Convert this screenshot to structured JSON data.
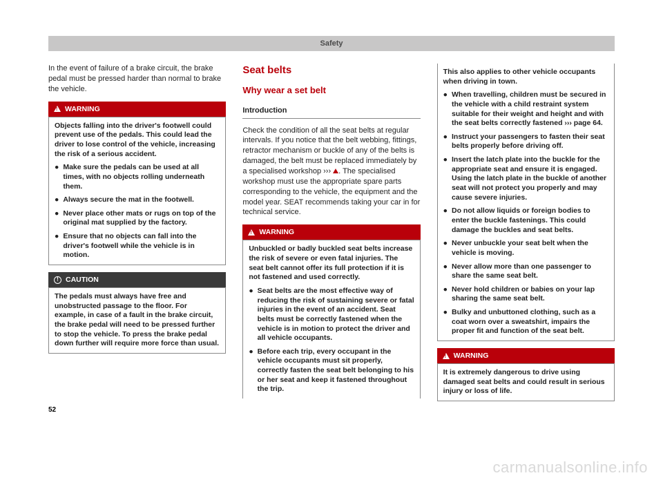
{
  "header": "Safety",
  "page_number": "52",
  "watermark": "carmanualsonline.info",
  "col1": {
    "intro": "In the event of failure of a brake circuit, the brake pedal must be pressed harder than normal to brake the vehicle.",
    "warning": {
      "title": "WARNING",
      "para": "Objects falling into the driver's footwell could prevent use of the pedals. This could lead the driver to lose control of the vehicle, increasing the risk of a serious accident.",
      "items": [
        "Make sure the pedals can be used at all times, with no objects rolling underneath them.",
        "Always secure the mat in the footwell.",
        "Never place other mats or rugs on top of the original mat supplied by the factory.",
        "Ensure that no objects can fall into the driver's footwell while the vehicle is in motion."
      ]
    },
    "caution": {
      "title": "CAUTION",
      "text": "The pedals must always have free and unobstructed passage to the floor. For example, in case of a fault in the brake circuit, the brake pedal will need to be pressed further to stop the vehicle. To press the brake pedal down further will require more force than usual."
    }
  },
  "col2": {
    "h1": "Seat belts",
    "h2": "Why wear a set belt",
    "h3": "Introduction",
    "para1_a": "Check the condition of all the seat belts at regular intervals. If you notice that the belt webbing, fittings, retractor mechanism or buckle of any of the belts is damaged, the belt must be replaced immediately by a specialised workshop ››› ",
    "para1_b": ". The specialised workshop must use the appropriate spare parts corresponding to the vehicle, the equipment and the model year. SEAT recommends taking your car in for technical service.",
    "warning": {
      "title": "WARNING",
      "para": "Unbuckled or badly buckled seat belts increase the risk of severe or even fatal injuries. The seat belt cannot offer its full protection if it is not fastened and used correctly.",
      "items": [
        "Seat belts are the most effective way of reducing the risk of sustaining severe or fatal injuries in the event of an accident. Seat belts must be correctly fastened when the vehicle is in motion to protect the driver and all vehicle occupants.",
        "Before each trip, every occupant in the vehicle occupants must sit properly, correctly fasten the seat belt belonging to his or her seat and keep it fastened throughout the trip."
      ]
    }
  },
  "col3": {
    "cont": "This also applies to other vehicle occupants when driving in town.",
    "items": [
      "When travelling, children must be secured in the vehicle with a child restraint system suitable for their weight and height and with the seat belts correctly fastened ››› page 64.",
      "Instruct your passengers to fasten their seat belts properly before driving off.",
      "Insert the latch plate into the buckle for the appropriate seat and ensure it is engaged. Using the latch plate in the buckle of another seat will not protect you properly and may cause severe injuries.",
      "Do not allow liquids or foreign bodies to enter the buckle fastenings. This could damage the buckles and seat belts.",
      "Never unbuckle your seat belt when the vehicle is moving.",
      "Never allow more than one passenger to share the same seat belt.",
      "Never hold children or babies on your lap sharing the same seat belt.",
      "Bulky and unbuttoned clothing, such as a coat worn over a sweatshirt, impairs the proper fit and function of the seat belt."
    ],
    "warning2": {
      "title": "WARNING",
      "text": "It is extremely dangerous to drive using damaged seat belts and could result in serious injury or loss of life."
    }
  }
}
